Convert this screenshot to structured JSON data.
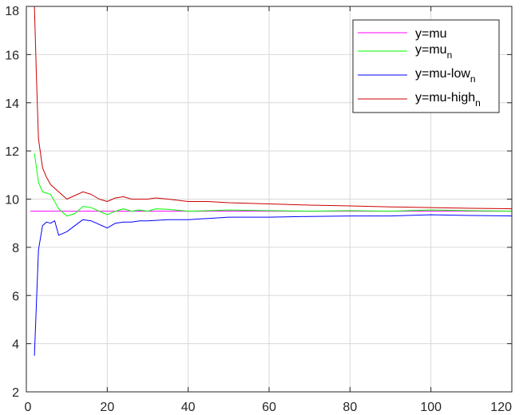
{
  "chart_data": {
    "type": "line",
    "title": "",
    "xlabel": "",
    "ylabel": "",
    "xlim": [
      0,
      120
    ],
    "ylim": [
      2,
      18
    ],
    "grid": true,
    "legend_position": "top-right",
    "x_ticks": [
      0,
      20,
      40,
      60,
      80,
      100,
      120
    ],
    "y_ticks": [
      2,
      4,
      6,
      8,
      10,
      12,
      14,
      16,
      18
    ],
    "x_tick_labels": [
      "0",
      "20",
      "40",
      "60",
      "80",
      "100",
      "120"
    ],
    "y_tick_labels": [
      "2",
      "4",
      "6",
      "8",
      "10",
      "12",
      "14",
      "16",
      "18"
    ],
    "legend": [
      {
        "text": "y=mu",
        "sub": ""
      },
      {
        "text": "y=mu",
        "sub": "n"
      },
      {
        "text": "y=mu-low",
        "sub": "n"
      },
      {
        "text": "y=mu-high",
        "sub": "n"
      }
    ],
    "series": [
      {
        "color": "#ff00ff",
        "x": [
          1,
          120
        ],
        "y": [
          9.5,
          9.5
        ]
      },
      {
        "color": "#00ff00",
        "x": [
          2,
          3,
          4,
          5,
          6,
          8,
          10,
          12,
          14,
          16,
          18,
          20,
          22,
          24,
          26,
          28,
          30,
          32,
          35,
          40,
          45,
          50,
          60,
          70,
          80,
          90,
          100,
          110,
          120
        ],
        "y": [
          11.9,
          10.7,
          10.3,
          10.25,
          10.2,
          9.6,
          9.3,
          9.4,
          9.7,
          9.65,
          9.5,
          9.35,
          9.5,
          9.6,
          9.5,
          9.55,
          9.5,
          9.6,
          9.58,
          9.5,
          9.52,
          9.55,
          9.52,
          9.5,
          9.52,
          9.5,
          9.55,
          9.52,
          9.5
        ]
      },
      {
        "color": "#0000ff",
        "x": [
          2,
          3,
          4,
          5,
          6,
          7,
          8,
          10,
          12,
          14,
          16,
          18,
          20,
          22,
          24,
          26,
          28,
          30,
          35,
          40,
          45,
          50,
          60,
          70,
          80,
          90,
          100,
          110,
          120
        ],
        "y": [
          3.5,
          7.9,
          8.9,
          9.05,
          9.0,
          9.1,
          8.5,
          8.65,
          8.9,
          9.15,
          9.1,
          8.95,
          8.8,
          9.0,
          9.05,
          9.05,
          9.1,
          9.1,
          9.15,
          9.15,
          9.2,
          9.25,
          9.25,
          9.28,
          9.3,
          9.3,
          9.35,
          9.32,
          9.3
        ]
      },
      {
        "color": "#cc0000",
        "x": [
          2,
          2.5,
          3,
          4,
          5,
          6,
          8,
          10,
          12,
          14,
          16,
          18,
          20,
          22,
          24,
          26,
          28,
          30,
          32,
          35,
          40,
          45,
          50,
          60,
          70,
          80,
          90,
          100,
          110,
          120
        ],
        "y": [
          18.0,
          15.0,
          12.5,
          11.3,
          10.9,
          10.6,
          10.3,
          10.0,
          10.15,
          10.3,
          10.2,
          10.0,
          9.9,
          10.05,
          10.1,
          10.0,
          10.0,
          10.0,
          10.05,
          10.0,
          9.9,
          9.9,
          9.85,
          9.8,
          9.75,
          9.72,
          9.68,
          9.65,
          9.62,
          9.6
        ]
      }
    ]
  }
}
